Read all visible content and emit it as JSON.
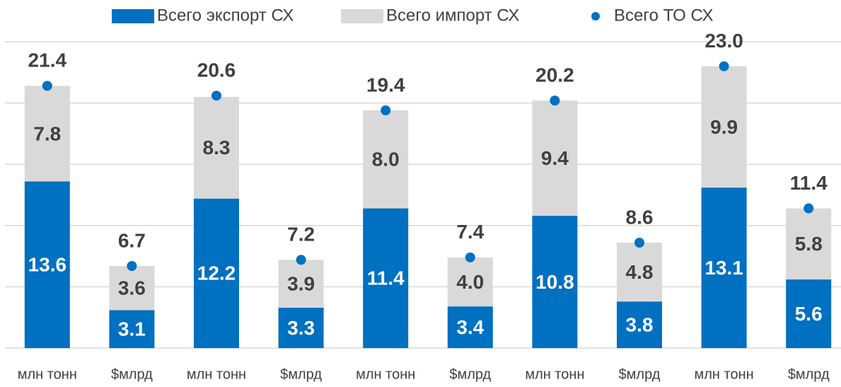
{
  "chart_data": {
    "type": "bar",
    "stacked": true,
    "categories": [
      "млн тонн",
      "$млрд",
      "млн тонн",
      "$млрд",
      "млн тонн",
      "$млрд",
      "млн тонн",
      "$млрд",
      "млн тонн",
      "$млрд"
    ],
    "series": [
      {
        "name": "Всего экспорт СХ",
        "color": "#0070c0",
        "label_color": "#ffffff",
        "values": [
          13.6,
          3.1,
          12.2,
          3.3,
          11.4,
          3.4,
          10.8,
          3.8,
          13.1,
          5.6
        ],
        "value_labels": [
          "13.6",
          "3.1",
          "12.2",
          "3.3",
          "11.4",
          "3.4",
          "10.8",
          "3.8",
          "13.1",
          "5.6"
        ]
      },
      {
        "name": "Всего импорт СХ",
        "color": "#d9d9d9",
        "label_color": "#404040",
        "values": [
          7.8,
          3.6,
          8.3,
          3.9,
          8.0,
          4.0,
          9.4,
          4.8,
          9.9,
          5.8
        ],
        "value_labels": [
          "7.8",
          "3.6",
          "8.3",
          "3.9",
          "8.0",
          "4.0",
          "9.4",
          "4.8",
          "9.9",
          "5.8"
        ]
      },
      {
        "name": "Всего ТО СХ",
        "color": "#0070c0",
        "label_color": "#404040",
        "type": "scatter",
        "values": [
          21.4,
          6.7,
          20.6,
          7.2,
          19.4,
          7.4,
          20.2,
          8.6,
          23.0,
          11.4
        ],
        "value_labels": [
          "21.4",
          "6.7",
          "20.6",
          "7.2",
          "19.4",
          "7.4",
          "20.2",
          "8.6",
          "23.0",
          "11.4"
        ]
      }
    ],
    "ylim": [
      0,
      25
    ],
    "yticks": [
      0,
      5,
      10,
      15,
      20,
      25
    ],
    "grid": true,
    "legend": "top"
  }
}
